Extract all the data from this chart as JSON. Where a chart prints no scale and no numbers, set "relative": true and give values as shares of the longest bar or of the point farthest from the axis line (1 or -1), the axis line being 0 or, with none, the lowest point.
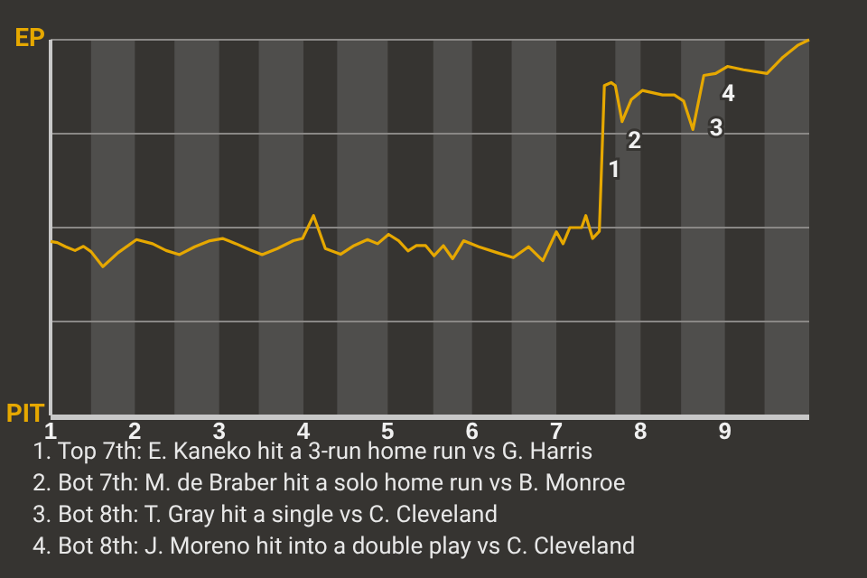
{
  "chart_data": {
    "type": "line",
    "relative": true,
    "x": [
      1.0,
      1.08,
      1.18,
      1.29,
      1.39,
      1.48,
      1.62,
      1.8,
      2.02,
      2.21,
      2.37,
      2.53,
      2.71,
      2.89,
      3.04,
      3.2,
      3.36,
      3.51,
      3.69,
      3.88,
      3.99,
      4.12,
      4.26,
      4.44,
      4.6,
      4.76,
      4.88,
      5.01,
      5.13,
      5.24,
      5.34,
      5.45,
      5.55,
      5.66,
      5.77,
      5.9,
      6.08,
      6.3,
      6.49,
      6.67,
      6.84,
      7.0,
      7.08,
      7.16,
      7.3,
      7.35,
      7.43,
      7.51,
      7.57,
      7.65,
      7.7,
      7.78,
      7.89,
      8.02,
      8.26,
      8.4,
      8.51,
      8.62,
      8.75,
      8.89,
      9.03,
      9.22,
      9.5,
      9.69,
      9.87,
      10.0
    ],
    "series": [
      {
        "color": "#e6a800",
        "values": [
          0.463,
          0.46,
          0.449,
          0.439,
          0.45,
          0.436,
          0.396,
          0.433,
          0.468,
          0.457,
          0.439,
          0.428,
          0.449,
          0.465,
          0.471,
          0.457,
          0.441,
          0.428,
          0.444,
          0.465,
          0.471,
          0.532,
          0.444,
          0.429,
          0.452,
          0.468,
          0.457,
          0.482,
          0.465,
          0.438,
          0.452,
          0.452,
          0.425,
          0.452,
          0.417,
          0.465,
          0.449,
          0.433,
          0.42,
          0.449,
          0.412,
          0.489,
          0.457,
          0.5,
          0.5,
          0.532,
          0.471,
          0.49,
          0.878,
          0.886,
          0.878,
          0.782,
          0.841,
          0.865,
          0.853,
          0.853,
          0.837,
          0.761,
          0.905,
          0.91,
          0.929,
          0.92,
          0.91,
          0.954,
          0.986,
          1.0
        ]
      }
    ],
    "xlim": [
      1,
      10
    ],
    "xticks": [
      1,
      2,
      3,
      4,
      5,
      6,
      7,
      8,
      9
    ],
    "marker": "none",
    "line_style": "solid",
    "ref_lines": [
      {
        "axis": "y",
        "value": 1,
        "label": "EP",
        "color": "#8a8886"
      },
      {
        "axis": "y",
        "value": 0.75,
        "color": "#8a8886"
      },
      {
        "axis": "y",
        "value": 0.5,
        "color": "#8a8886"
      },
      {
        "axis": "y",
        "value": 0.25,
        "color": "#8a8886"
      },
      {
        "axis": "y",
        "value": 0,
        "label": "PIT",
        "color": "#c8c8c8"
      }
    ],
    "bands": [
      {
        "axis": "x",
        "from": 1.48,
        "to": 2,
        "color": "#4f4e4c"
      },
      {
        "axis": "x",
        "from": 2.47,
        "to": 3,
        "color": "#4f4e4c"
      },
      {
        "axis": "x",
        "from": 3.47,
        "to": 4,
        "color": "#4f4e4c"
      },
      {
        "axis": "x",
        "from": 4.4,
        "to": 5,
        "color": "#4f4e4c"
      },
      {
        "axis": "x",
        "from": 5.54,
        "to": 6,
        "color": "#4f4e4c"
      },
      {
        "axis": "x",
        "from": 6.47,
        "to": 7,
        "color": "#4f4e4c"
      },
      {
        "axis": "x",
        "from": 7.7,
        "to": 8,
        "color": "#4f4e4c"
      },
      {
        "axis": "x",
        "from": 8.48,
        "to": 9,
        "color": "#4f4e4c"
      },
      {
        "axis": "x",
        "from": 9.47,
        "to": 10,
        "color": "#4f4e4c"
      }
    ],
    "annotations": [
      {
        "text": "1",
        "x": 7.54,
        "y": 0.65
      },
      {
        "text": "2",
        "x": 7.78,
        "y": 0.782
      },
      {
        "text": "3",
        "x": 8.75,
        "y": 0.761
      },
      {
        "text": "4",
        "x": 8.89,
        "y": 0.905
      },
      "1. Top 7th: E. Kaneko hit a 3-run home run vs G. Harris",
      "2. Bot 7th: M. de Braber hit a solo home run vs B. Monroe",
      "3. Bot 8th: T. Gray hit a single vs C. Cleveland",
      "4. Bot 8th: J. Moreno hit into a double play vs C. Cleveland"
    ]
  }
}
